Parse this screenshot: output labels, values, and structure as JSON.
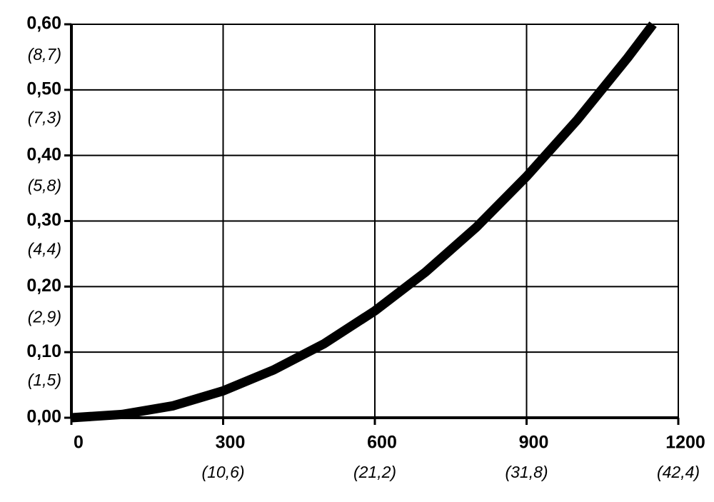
{
  "chart_data": {
    "type": "line",
    "x": [
      0,
      100,
      200,
      300,
      400,
      500,
      600,
      700,
      800,
      900,
      1000,
      1100,
      1150
    ],
    "values": [
      0,
      0.005,
      0.018,
      0.041,
      0.073,
      0.113,
      0.163,
      0.222,
      0.29,
      0.368,
      0.454,
      0.549,
      0.6
    ],
    "color": "#000000",
    "xlim": [
      0,
      1200
    ],
    "xticks": [
      0,
      300,
      600,
      900,
      1200
    ],
    "ylim": [
      0,
      0.6
    ],
    "yticks": [
      {
        "value": 0,
        "label": "0,00"
      },
      {
        "value": 0.1,
        "label": "0,10"
      },
      {
        "value": 0.2,
        "label": "0,20"
      },
      {
        "value": 0.3,
        "label": "0,30"
      },
      {
        "value": 0.4,
        "label": "0,40"
      },
      {
        "value": 0.5,
        "label": "0,50"
      },
      {
        "value": 0.6,
        "label": "0,60"
      }
    ],
    "y2lim": [
      0,
      8.7
    ],
    "y2ticks": [
      {
        "value": 1.5,
        "label": "(1,5)"
      },
      {
        "value": 2.9,
        "label": "(2,9)"
      },
      {
        "value": 4.4,
        "label": "(4,4)"
      },
      {
        "value": 5.8,
        "label": "(5,8)"
      },
      {
        "value": 7.3,
        "label": "(7,3)"
      },
      {
        "value": 8.7,
        "label": "(8,7)"
      }
    ],
    "x2lim": [
      0,
      42.4
    ],
    "x2ticks": [
      {
        "value": 10.6,
        "label": "(10,6)"
      },
      {
        "value": 21.2,
        "label": "(21,2)"
      },
      {
        "value": 31.8,
        "label": "(31,8)"
      },
      {
        "value": 42.4,
        "label": "(42,4)"
      }
    ],
    "grid": true
  }
}
